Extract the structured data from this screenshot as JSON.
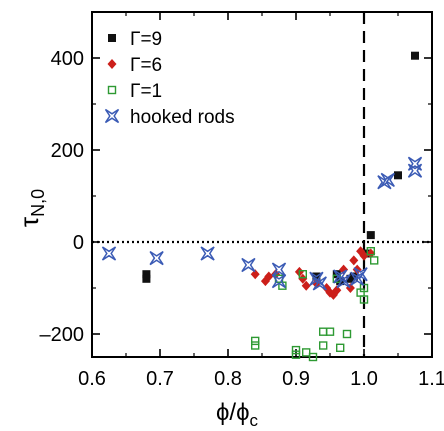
{
  "chart_data": {
    "type": "scatter",
    "xlabel": {
      "main": "ϕ/ϕ",
      "sub": "c"
    },
    "ylabel": {
      "main": "τ",
      "sub": "N,0"
    },
    "xlim": [
      0.6,
      1.1
    ],
    "ylim": [
      -250,
      500
    ],
    "x_ticks": [
      "0.6",
      "0.7",
      "0.8",
      "0.9",
      "1.0",
      "1.1"
    ],
    "y_ticks": [
      "–200",
      "0",
      "200",
      "400"
    ],
    "x_tick_values": [
      0.6,
      0.7,
      0.8,
      0.9,
      1.0,
      1.1
    ],
    "y_tick_values": [
      -200,
      0,
      200,
      400
    ],
    "reference_lines": [
      {
        "orientation": "horizontal",
        "value": 0,
        "style": "dotted"
      },
      {
        "orientation": "vertical",
        "value": 1.0,
        "style": "dashed"
      }
    ],
    "grid": false,
    "legend_position": "top-left",
    "series": [
      {
        "name": "Γ=9",
        "marker": "filled-square",
        "color": "#111111",
        "points": [
          [
            0.68,
            -70
          ],
          [
            0.68,
            -80
          ],
          [
            0.93,
            -75
          ],
          [
            0.96,
            -70
          ],
          [
            0.965,
            -85
          ],
          [
            0.98,
            -80
          ],
          [
            0.985,
            -75
          ],
          [
            1.005,
            -25
          ],
          [
            1.01,
            15
          ],
          [
            1.05,
            145
          ],
          [
            1.075,
            405
          ]
        ]
      },
      {
        "name": "Γ=6",
        "marker": "filled-diamond",
        "color": "#cc1f1a",
        "points": [
          [
            0.84,
            -70
          ],
          [
            0.855,
            -85
          ],
          [
            0.86,
            -75
          ],
          [
            0.87,
            -70
          ],
          [
            0.905,
            -65
          ],
          [
            0.91,
            -80
          ],
          [
            0.915,
            -95
          ],
          [
            0.93,
            -90
          ],
          [
            0.945,
            -100
          ],
          [
            0.95,
            -110
          ],
          [
            0.955,
            -115
          ],
          [
            0.96,
            -105
          ],
          [
            0.97,
            -60
          ],
          [
            0.98,
            -100
          ],
          [
            0.985,
            -40
          ],
          [
            0.99,
            -60
          ],
          [
            0.995,
            -20
          ],
          [
            1.0,
            -30
          ],
          [
            1.01,
            -25
          ]
        ]
      },
      {
        "name": "Γ=1",
        "marker": "open-square",
        "color": "#2e9a33",
        "points": [
          [
            0.84,
            -215
          ],
          [
            0.84,
            -225
          ],
          [
            0.875,
            -80
          ],
          [
            0.88,
            -95
          ],
          [
            0.9,
            -235
          ],
          [
            0.9,
            -245
          ],
          [
            0.91,
            -70
          ],
          [
            0.915,
            -240
          ],
          [
            0.925,
            -250
          ],
          [
            0.94,
            -195
          ],
          [
            0.94,
            -225
          ],
          [
            0.95,
            -195
          ],
          [
            0.96,
            -80
          ],
          [
            0.965,
            -230
          ],
          [
            0.975,
            -200
          ],
          [
            0.995,
            -110
          ],
          [
            1.0,
            -125
          ],
          [
            1.0,
            -100
          ],
          [
            1.01,
            -20
          ],
          [
            1.015,
            -40
          ]
        ]
      },
      {
        "name": "hooked rods",
        "marker": "star",
        "color": "#3b5bb5",
        "points": [
          [
            0.625,
            -25
          ],
          [
            0.695,
            -35
          ],
          [
            0.77,
            -25
          ],
          [
            0.83,
            -50
          ],
          [
            0.875,
            -60
          ],
          [
            0.875,
            -85
          ],
          [
            0.93,
            -80
          ],
          [
            0.935,
            -90
          ],
          [
            0.965,
            -75
          ],
          [
            0.97,
            -85
          ],
          [
            0.99,
            -80
          ],
          [
            0.995,
            -70
          ],
          [
            1.03,
            130
          ],
          [
            1.035,
            135
          ],
          [
            1.075,
            155
          ],
          [
            1.075,
            170
          ]
        ]
      }
    ]
  }
}
